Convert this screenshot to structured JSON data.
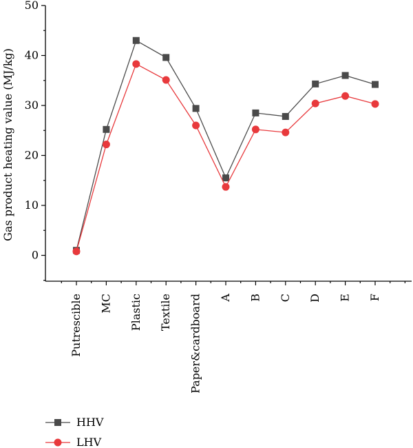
{
  "chart_data": {
    "type": "line",
    "categories": [
      "Putrescible",
      "MC",
      "Plastic",
      "Textile",
      "Paper&cardboard",
      "A",
      "B",
      "C",
      "D",
      "E",
      "F"
    ],
    "series": [
      {
        "name": "HHV",
        "color": "#4a4a4a",
        "marker": "square",
        "values": [
          1.0,
          25.2,
          43.0,
          39.6,
          29.4,
          15.5,
          28.5,
          27.8,
          34.3,
          36.0,
          34.2
        ]
      },
      {
        "name": "LHV",
        "color": "#e8393c",
        "marker": "circle",
        "values": [
          0.8,
          22.2,
          38.3,
          35.1,
          26.0,
          13.7,
          25.2,
          24.6,
          30.4,
          31.9,
          30.3
        ]
      }
    ],
    "ylabel": "Gas product heating value (MJ/kg)",
    "xlabel": "",
    "ylim": [
      -5,
      50
    ],
    "yticks": [
      0,
      10,
      20,
      30,
      40,
      50
    ],
    "grid": false,
    "legend_position": "bottom-left"
  }
}
